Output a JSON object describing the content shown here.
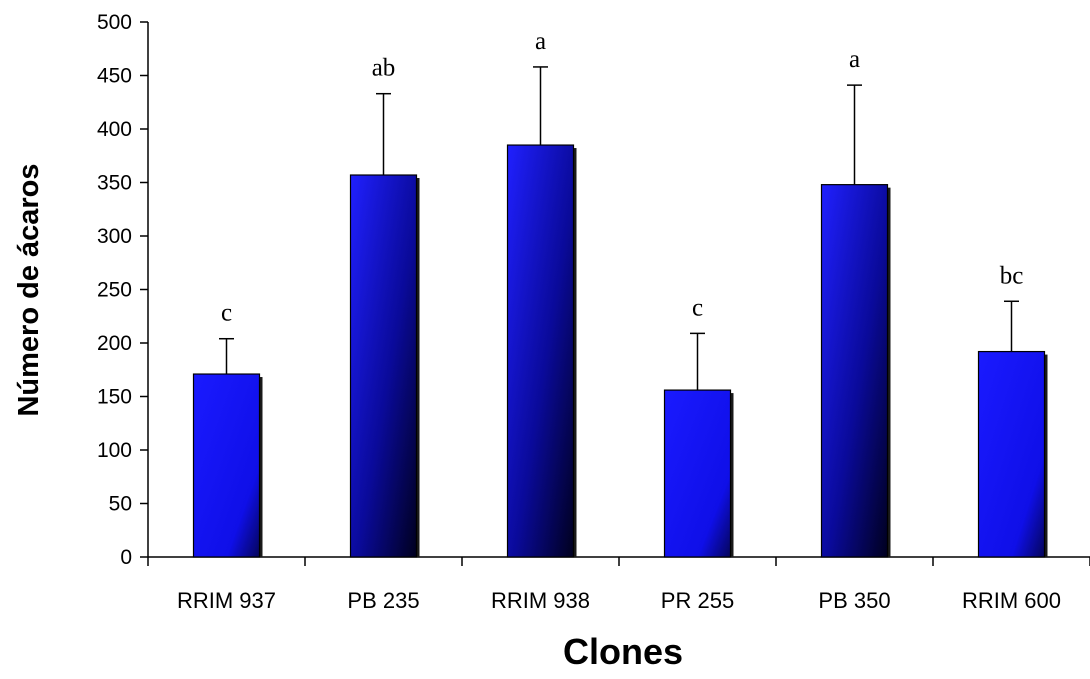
{
  "chart_data": {
    "type": "bar",
    "title": "",
    "xlabel": "Clones",
    "ylabel": "Número de ácaros",
    "categories": [
      "RRIM 937",
      "PB 235",
      "RRIM 938",
      "PR 255",
      "PB 350",
      "RRIM 600"
    ],
    "values": [
      171,
      357,
      385,
      156,
      348,
      192
    ],
    "error": [
      33,
      76,
      73,
      53,
      93,
      47
    ],
    "significance": [
      "c",
      "ab",
      "a",
      "c",
      "a",
      "bc"
    ],
    "ylim": [
      0,
      500
    ],
    "yticks": [
      0,
      50,
      100,
      150,
      200,
      250,
      300,
      350,
      400,
      450,
      500
    ],
    "grid": false,
    "legend": "none",
    "colors": {
      "bar_light": "#1414ff",
      "bar_dark": "#00002a",
      "axis": "#000000"
    }
  }
}
